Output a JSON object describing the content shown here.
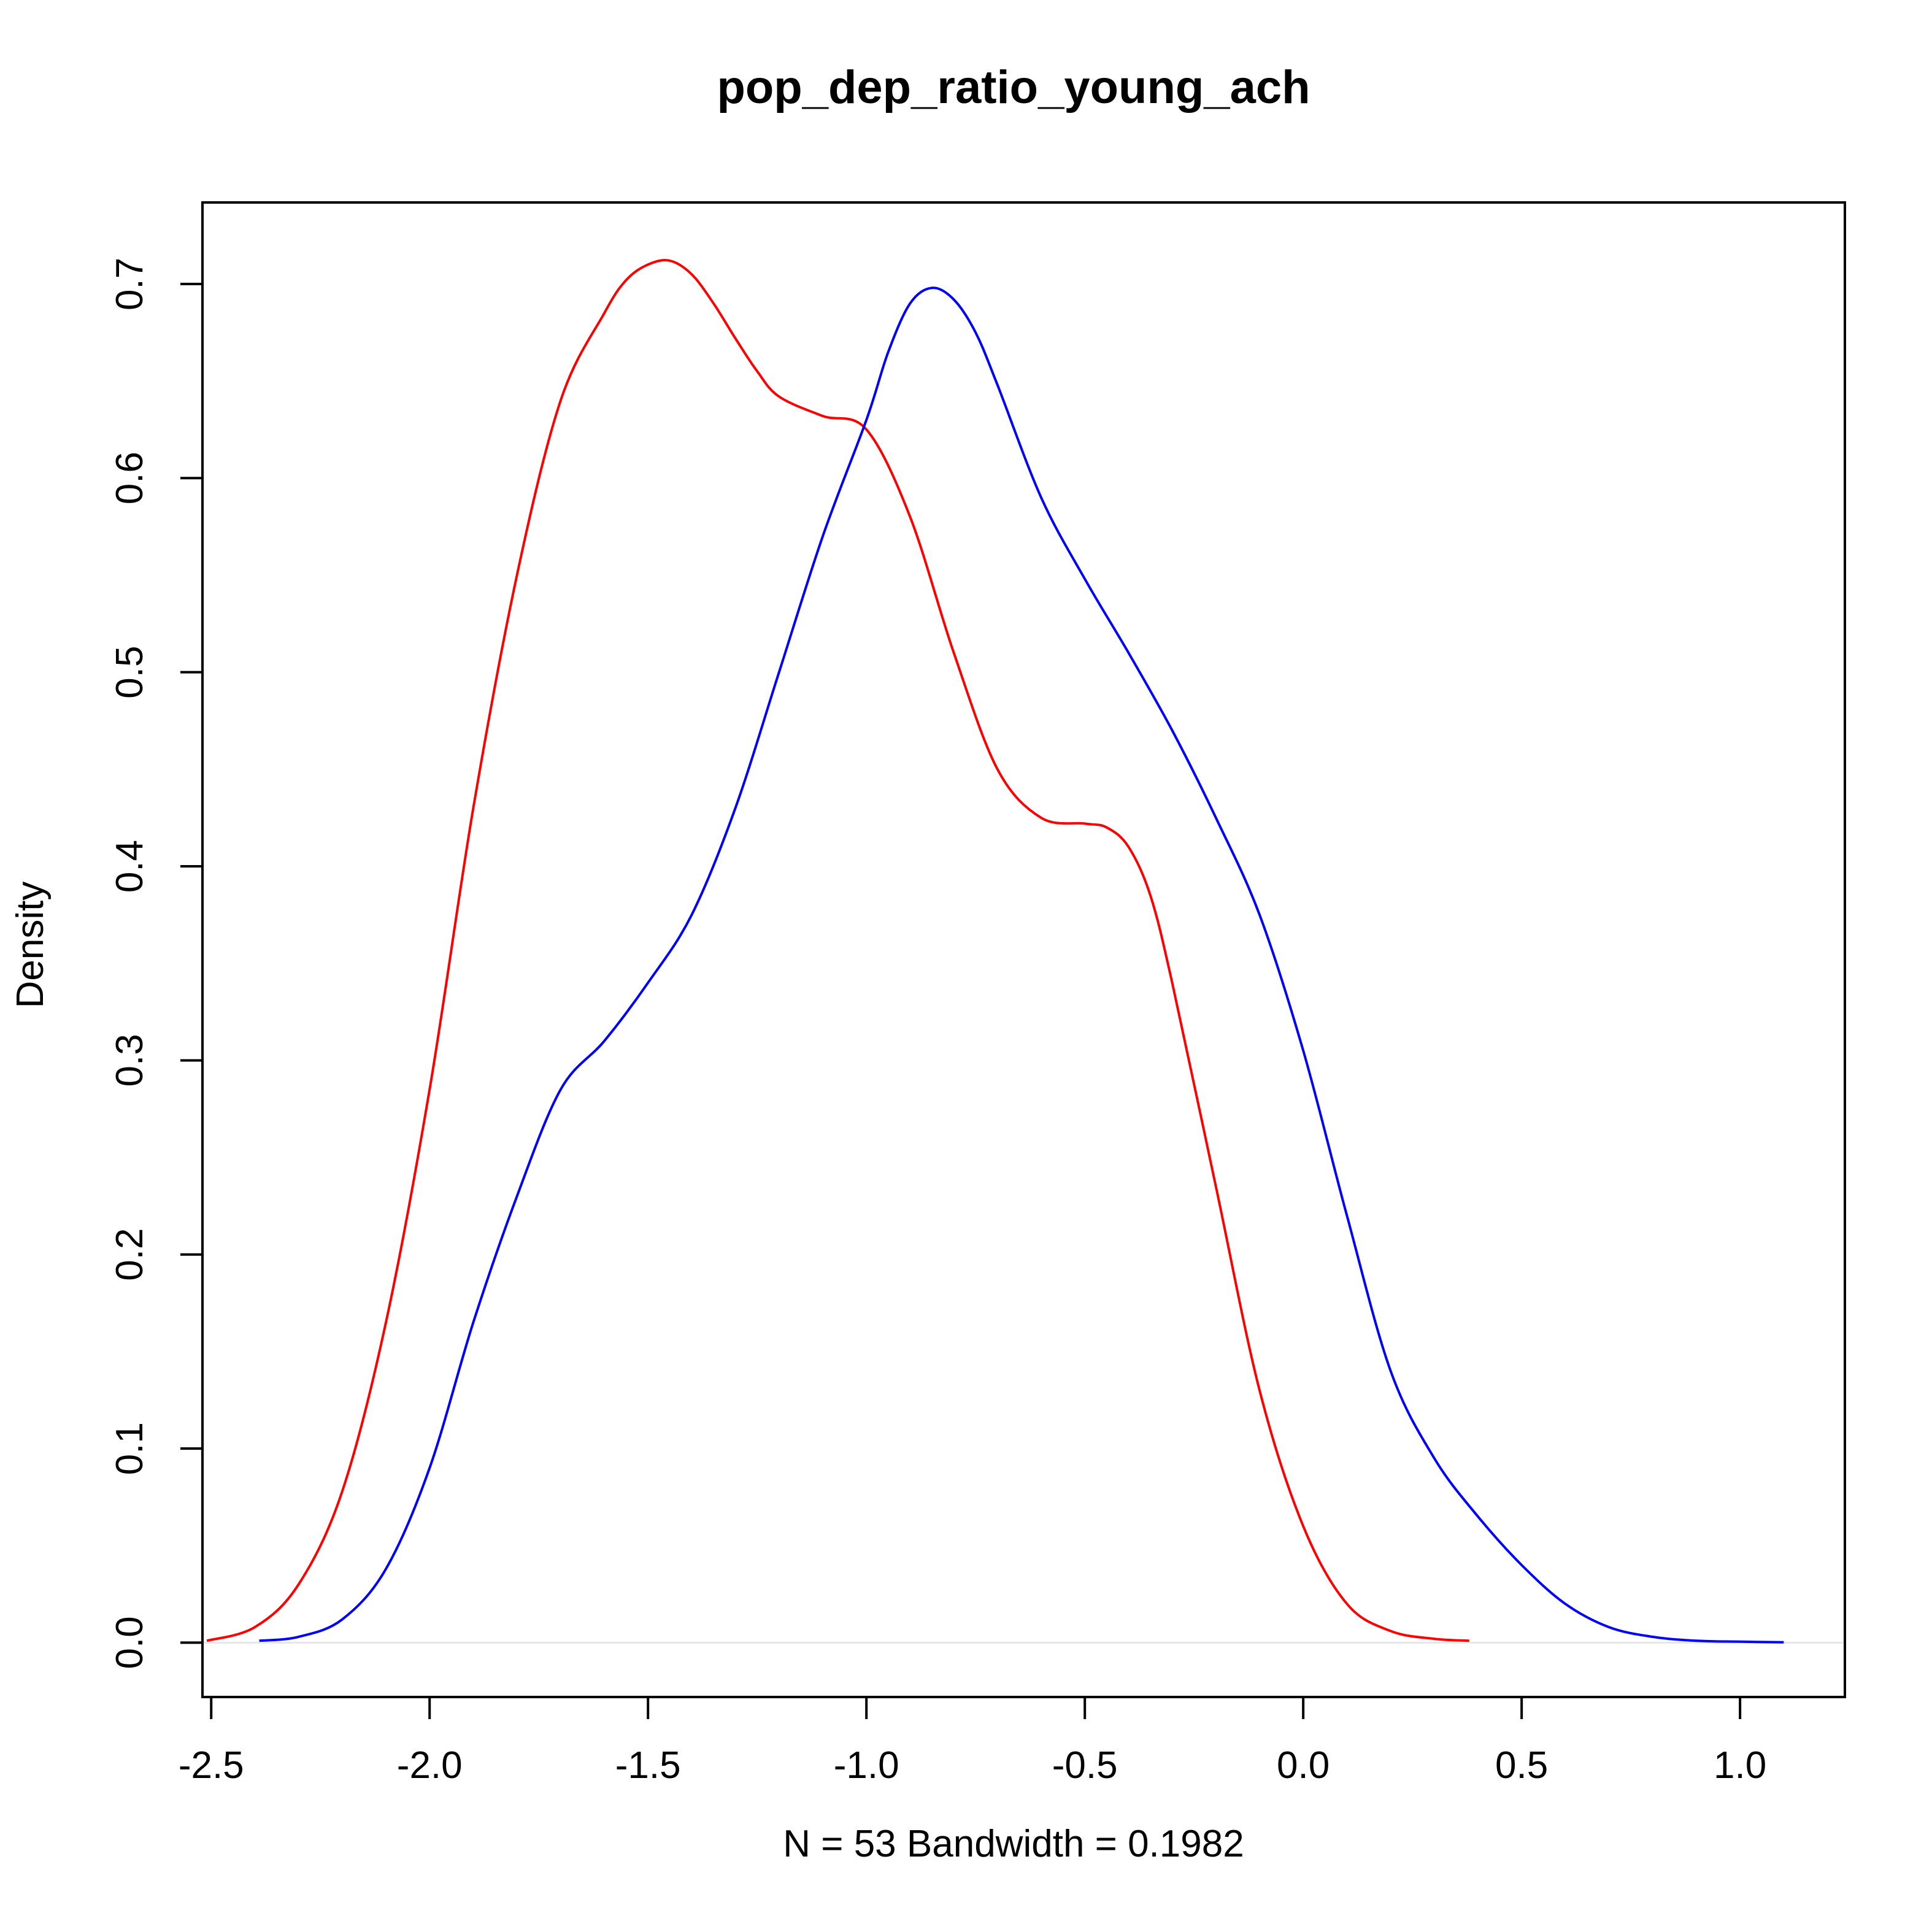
{
  "chart_data": {
    "type": "line",
    "title": "pop_dep_ratio_young_ach",
    "xlabel": "N = 53   Bandwidth = 0.1982",
    "ylabel": "Density",
    "xlim": [
      -2.52,
      1.24
    ],
    "ylim": [
      -0.028,
      0.742
    ],
    "x_ticks": [
      -2.5,
      -2.0,
      -1.5,
      -1.0,
      -0.5,
      0.0,
      0.5,
      1.0
    ],
    "x_tick_labels": [
      "-2.5",
      "-2.0",
      "-1.5",
      "-1.0",
      "-0.5",
      "0.0",
      "0.5",
      "1.0"
    ],
    "y_ticks": [
      0.0,
      0.1,
      0.2,
      0.3,
      0.4,
      0.5,
      0.6,
      0.7
    ],
    "y_tick_labels": [
      "0.0",
      "0.1",
      "0.2",
      "0.3",
      "0.4",
      "0.5",
      "0.6",
      "0.7"
    ],
    "grid": false,
    "legend": false,
    "baseline": {
      "y": 0.0,
      "color": "#e6e6e6"
    },
    "series": [
      {
        "color": "#ff0000",
        "x": [
          -2.51,
          -2.4,
          -2.3,
          -2.2,
          -2.1,
          -2.0,
          -1.9,
          -1.8,
          -1.7,
          -1.6,
          -1.55,
          -1.5,
          -1.45,
          -1.4,
          -1.35,
          -1.3,
          -1.25,
          -1.2,
          -1.1,
          -1.0,
          -0.9,
          -0.8,
          -0.7,
          -0.6,
          -0.5,
          -0.45,
          -0.4,
          -0.35,
          -0.3,
          -0.2,
          -0.1,
          0.0,
          0.1,
          0.2,
          0.3,
          0.38
        ],
        "y": [
          0.001,
          0.008,
          0.03,
          0.078,
          0.165,
          0.285,
          0.43,
          0.55,
          0.64,
          0.685,
          0.702,
          0.71,
          0.712,
          0.705,
          0.69,
          0.672,
          0.655,
          0.642,
          0.632,
          0.625,
          0.58,
          0.51,
          0.45,
          0.425,
          0.422,
          0.42,
          0.41,
          0.385,
          0.34,
          0.235,
          0.13,
          0.06,
          0.02,
          0.006,
          0.002,
          0.001
        ]
      },
      {
        "color": "#0000ff",
        "x": [
          -2.39,
          -2.3,
          -2.2,
          -2.1,
          -2.0,
          -1.9,
          -1.8,
          -1.7,
          -1.6,
          -1.5,
          -1.4,
          -1.3,
          -1.2,
          -1.1,
          -1.0,
          -0.95,
          -0.9,
          -0.85,
          -0.8,
          -0.75,
          -0.7,
          -0.6,
          -0.5,
          -0.4,
          -0.3,
          -0.2,
          -0.1,
          0.0,
          0.1,
          0.2,
          0.3,
          0.4,
          0.5,
          0.6,
          0.7,
          0.8,
          0.9,
          1.0,
          1.1
        ],
        "y": [
          0.001,
          0.003,
          0.012,
          0.038,
          0.09,
          0.165,
          0.23,
          0.285,
          0.31,
          0.34,
          0.375,
          0.43,
          0.5,
          0.57,
          0.63,
          0.665,
          0.69,
          0.698,
          0.692,
          0.675,
          0.648,
          0.59,
          0.548,
          0.51,
          0.47,
          0.425,
          0.375,
          0.305,
          0.22,
          0.14,
          0.095,
          0.065,
          0.04,
          0.02,
          0.008,
          0.003,
          0.001,
          0.0005,
          0.0002
        ]
      }
    ]
  }
}
